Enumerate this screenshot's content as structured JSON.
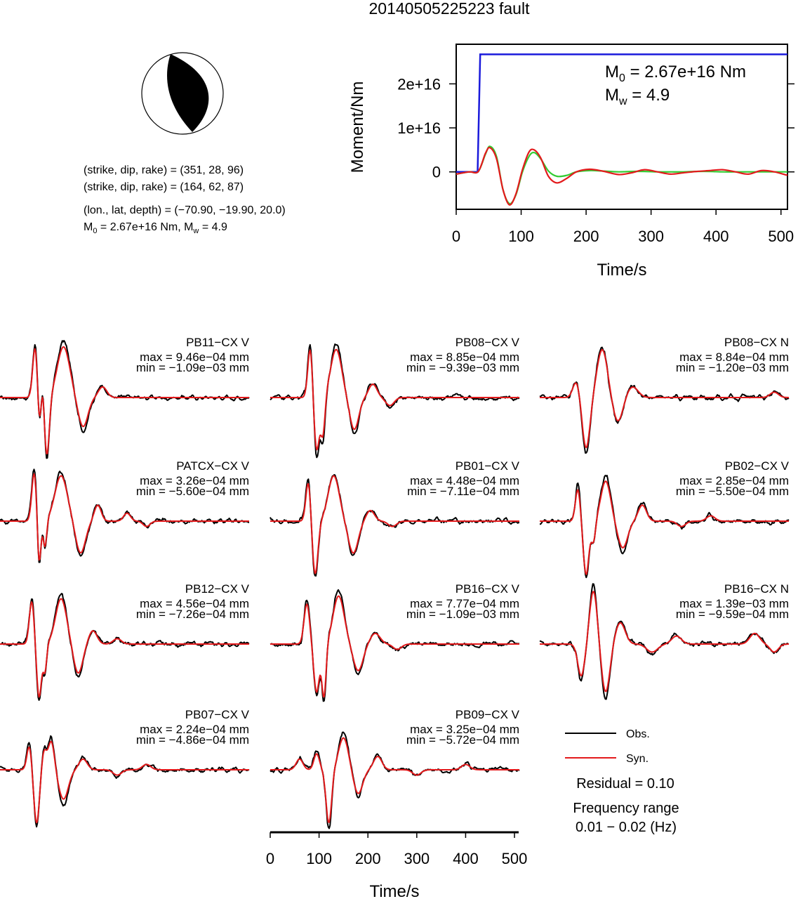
{
  "title": "20140505225223 fault",
  "colors": {
    "obs": "#000000",
    "syn": "#e31a1c",
    "cumulative": "#1a1adb",
    "mrf_obs": "#e31a1c",
    "mrf_fit": "#33cc33"
  },
  "mechanism": {
    "line1": "(strike, dip, rake) = (351, 28, 96)",
    "line2": "(strike, dip, rake) = (164, 62, 87)",
    "line3": "(lon., lat, depth) = (−70.90, −19.90, 20.0)",
    "m0_sym": "M",
    "m0_sub": "0",
    "m0_val": " = 2.67e+16 Nm, ",
    "mw_sym": "M",
    "mw_sub": "w",
    "mw_val": " = 4.9"
  },
  "chart_data": [
    {
      "type": "line",
      "title": "",
      "xlabel": "Time/s",
      "ylabel": "Moment/Nm",
      "xlim": [
        0,
        510
      ],
      "ylim": [
        -8500000000000000.0,
        2.9e+16
      ],
      "xticks": [
        "0",
        "100",
        "200",
        "300",
        "400",
        "500"
      ],
      "xtick_values": [
        0,
        100,
        200,
        300,
        400,
        500
      ],
      "yticks": [
        "0",
        "1e+16",
        "2e+16"
      ],
      "ytick_values": [
        0,
        1e+16,
        2e+16
      ],
      "annotation": {
        "m0_sym": "M",
        "m0_sub": "0",
        "m0_val": " = 2.67e+16 Nm",
        "mw_sym": "M",
        "mw_sub": "w",
        "mw_val": " = 4.9"
      },
      "series": [
        {
          "role": "cumulative",
          "x": [
            0,
            33,
            37,
            510
          ],
          "y": [
            0,
            0,
            2.67e+16,
            2.67e+16
          ]
        },
        {
          "role": "red",
          "x": [
            0,
            20,
            34,
            45,
            52,
            62,
            72,
            82,
            92,
            102,
            112,
            120,
            130,
            142,
            155,
            170,
            185,
            205,
            225,
            250,
            270,
            290,
            310,
            330,
            350,
            370,
            390,
            410,
            430,
            450,
            470,
            490,
            510
          ],
          "y": [
            -500000000000000.0,
            0,
            100000000000000.0,
            4200000000000000.0,
            5500000000000000.0,
            3000000000000000.0,
            -4000000000000000.0,
            -7500000000000000.0,
            -5000000000000000.0,
            500000000000000.0,
            4500000000000000.0,
            5000000000000000.0,
            3200000000000000.0,
            -1000000000000000.0,
            -2500000000000000.0,
            -1500000000000000.0,
            0,
            600000000000000.0,
            200000000000000.0,
            -600000000000000.0,
            -200000000000000.0,
            500000000000000.0,
            0,
            -500000000000000.0,
            -200000000000000.0,
            100000000000000.0,
            300000000000000.0,
            500000000000000.0,
            0,
            -500000000000000.0,
            300000000000000.0,
            0,
            -800000000000000.0
          ]
        },
        {
          "role": "green",
          "x": [
            0,
            20,
            34,
            45,
            52,
            62,
            72,
            82,
            92,
            102,
            112,
            120,
            130,
            142,
            155,
            170,
            185,
            205,
            225,
            250,
            270,
            290,
            310,
            330,
            350,
            370,
            390,
            410,
            430,
            450,
            470,
            490,
            510
          ],
          "y": [
            -500000000000000.0,
            0,
            100000000000000.0,
            4000000000000000.0,
            5800000000000000.0,
            3500000000000000.0,
            -4000000000000000.0,
            -7200000000000000.0,
            -5200000000000000.0,
            0,
            3500000000000000.0,
            4400000000000000.0,
            3000000000000000.0,
            200000000000000.0,
            -1000000000000000.0,
            -800000000000000.0,
            0,
            300000000000000.0,
            200000000000000.0,
            0,
            100000000000000.0,
            100000000000000.0,
            0,
            0,
            0,
            100000000000000.0,
            100000000000000.0,
            0,
            0,
            0,
            0,
            0,
            0
          ]
        }
      ]
    },
    {
      "type": "line",
      "xlabel": "Time/s",
      "xlim": [
        0,
        510
      ],
      "xticks": [
        "0",
        "100",
        "200",
        "300",
        "400",
        "500"
      ],
      "xtick_values": [
        0,
        100,
        200,
        300,
        400,
        500
      ],
      "legend": [
        "Obs.",
        "Syn."
      ],
      "residual": "Residual = 0.10",
      "freq_label": "Frequency range",
      "freq_value": "0.01 − 0.02 (Hz)",
      "stations": [
        {
          "name": "PB11−CX V",
          "max": "max = 9.46e−04 mm",
          "min": "min = −1.09e−03 mm",
          "events": [
            [
              72,
              0.95,
              7
            ],
            [
              80,
              -0.55,
              5
            ],
            [
              88,
              0.3,
              4
            ],
            [
              96,
              -1.1,
              7
            ],
            [
              130,
              0.95,
              18
            ],
            [
              170,
              -0.55,
              14
            ],
            [
              210,
              0.2,
              12
            ]
          ]
        },
        {
          "name": "PB08−CX V",
          "max": "max = 8.85e−04 mm",
          "min": "min = −9.39e−03 mm",
          "events": [
            [
              82,
              0.95,
              7
            ],
            [
              95,
              -1.0,
              8
            ],
            [
              108,
              -0.7,
              6
            ],
            [
              135,
              0.9,
              16
            ],
            [
              172,
              -0.6,
              13
            ],
            [
              210,
              0.25,
              12
            ],
            [
              245,
              -0.15,
              12
            ]
          ]
        },
        {
          "name": "PB08−CX N",
          "max": "max = 8.84e−04 mm",
          "min": "min = −1.20e−03 mm",
          "events": [
            [
              75,
              0.3,
              10
            ],
            [
              95,
              -0.95,
              11
            ],
            [
              128,
              0.9,
              15
            ],
            [
              160,
              -0.45,
              14
            ],
            [
              190,
              0.2,
              16
            ],
            [
              480,
              0.1,
              12
            ]
          ]
        },
        {
          "name": "PATCX−CX V",
          "max": "max = 3.26e−04 mm",
          "min": "min = −5.60e−04 mm",
          "events": [
            [
              70,
              0.9,
              7
            ],
            [
              80,
              -0.85,
              5
            ],
            [
              92,
              -0.5,
              5
            ],
            [
              125,
              0.85,
              18
            ],
            [
              165,
              -0.6,
              14
            ],
            [
              200,
              0.3,
              10
            ],
            [
              260,
              0.15,
              10
            ],
            [
              300,
              -0.1,
              10
            ]
          ]
        },
        {
          "name": "PB01−CX V",
          "max": "max = 4.48e−04 mm",
          "min": "min = −7.11e−04 mm",
          "events": [
            [
              78,
              0.75,
              7
            ],
            [
              92,
              -1.0,
              8
            ],
            [
              130,
              0.85,
              16
            ],
            [
              170,
              -0.6,
              14
            ],
            [
              205,
              0.2,
              12
            ],
            [
              250,
              -0.1,
              12
            ]
          ]
        },
        {
          "name": "PB02−CX V",
          "max": "max = 2.85e−04 mm",
          "min": "min = −5.50e−04 mm",
          "events": [
            [
              78,
              0.6,
              7
            ],
            [
              95,
              -1.0,
              8
            ],
            [
              110,
              -0.4,
              6
            ],
            [
              135,
              0.75,
              14
            ],
            [
              170,
              -0.5,
              14
            ],
            [
              210,
              0.3,
              12
            ],
            [
              290,
              -0.1,
              12
            ],
            [
              350,
              0.1,
              12
            ]
          ]
        },
        {
          "name": "PB12−CX V",
          "max": "max = 4.56e−04 mm",
          "min": "min = −7.26e−04 mm",
          "events": [
            [
              65,
              0.8,
              7
            ],
            [
              80,
              -1.0,
              7
            ],
            [
              92,
              -0.5,
              5
            ],
            [
              125,
              0.85,
              16
            ],
            [
              160,
              -0.55,
              13
            ],
            [
              190,
              0.25,
              12
            ],
            [
              240,
              0.1,
              12
            ]
          ]
        },
        {
          "name": "PB16−CX V",
          "max": "max = 7.77e−04 mm",
          "min": "min = −1.09e−03 mm",
          "events": [
            [
              75,
              0.75,
              8
            ],
            [
              95,
              -0.9,
              8
            ],
            [
              110,
              -1.0,
              6
            ],
            [
              140,
              0.9,
              16
            ],
            [
              180,
              -0.5,
              14
            ],
            [
              215,
              0.2,
              14
            ],
            [
              260,
              -0.1,
              12
            ]
          ]
        },
        {
          "name": "PB16−CX N",
          "max": "max = 1.39e−03 mm",
          "min": "min = −9.59e−04 mm",
          "events": [
            [
              85,
              -0.6,
              10
            ],
            [
              110,
              1.0,
              11
            ],
            [
              135,
              -0.9,
              12
            ],
            [
              165,
              0.4,
              14
            ],
            [
              230,
              -0.15,
              16
            ],
            [
              280,
              0.15,
              14
            ],
            [
              440,
              0.2,
              14
            ],
            [
              480,
              -0.15,
              12
            ]
          ]
        },
        {
          "name": "PB07−CX V",
          "max": "max = 2.24e−04 mm",
          "min": "min = −4.86e−04 mm",
          "events": [
            [
              60,
              0.45,
              7
            ],
            [
              75,
              -1.0,
              8
            ],
            [
              90,
              0.35,
              7
            ],
            [
              105,
              0.55,
              9
            ],
            [
              130,
              -0.55,
              14
            ],
            [
              170,
              0.2,
              12
            ],
            [
              240,
              -0.1,
              12
            ],
            [
              300,
              0.1,
              12
            ]
          ]
        },
        {
          "name": "PB09−CX V",
          "max": "max = 3.25e−04 mm",
          "min": "min = −5.72e−04 mm",
          "events": [
            [
              60,
              0.2,
              10
            ],
            [
              95,
              0.3,
              8
            ],
            [
              120,
              -1.0,
              8
            ],
            [
              150,
              0.6,
              14
            ],
            [
              180,
              -0.45,
              13
            ],
            [
              220,
              0.25,
              12
            ],
            [
              300,
              -0.1,
              12
            ],
            [
              400,
              0.1,
              12
            ]
          ]
        }
      ]
    }
  ]
}
